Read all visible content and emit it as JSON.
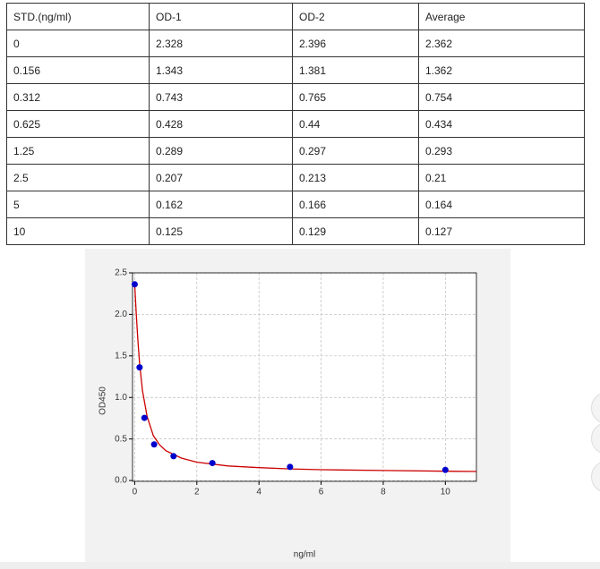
{
  "table": {
    "header": [
      "STD.(ng/ml)",
      "OD-1",
      "OD-2",
      "Average"
    ],
    "rows": [
      [
        "0",
        "2.328",
        "2.396",
        "2.362"
      ],
      [
        "0.156",
        "1.343",
        "1.381",
        "1.362"
      ],
      [
        "0.312",
        "0.743",
        "0.765",
        "0.754"
      ],
      [
        "0.625",
        "0.428",
        "0.44",
        "0.434"
      ],
      [
        "1.25",
        "0.289",
        "0.297",
        "0.293"
      ],
      [
        "2.5",
        "0.207",
        "0.213",
        "0.21"
      ],
      [
        "5",
        "0.162",
        "0.166",
        "0.164"
      ],
      [
        "10",
        "0.125",
        "0.129",
        "0.127"
      ]
    ]
  },
  "chart_data": {
    "type": "scatter",
    "xlabel": "ng/ml",
    "ylabel": "OD450",
    "xlim": [
      -0.07,
      11.0
    ],
    "ylim": [
      -0.01,
      2.5
    ],
    "xticks": [
      0,
      2,
      4,
      6,
      8,
      10
    ],
    "yticks": [
      {
        "value": 0,
        "label": "0.0"
      },
      0.5,
      {
        "value": 1,
        "label": "1.0"
      },
      1.5,
      {
        "value": 2,
        "label": "2.0"
      },
      2.5
    ],
    "grid": true,
    "series": [
      {
        "style": "line",
        "color": "#cc0000",
        "x": [
          0,
          0.05,
          0.1,
          0.156,
          0.25,
          0.4,
          0.6,
          0.8,
          1,
          1.5,
          2,
          3,
          4,
          5,
          6,
          8,
          10,
          11
        ],
        "values": [
          2.36,
          2.0,
          1.7,
          1.42,
          1.08,
          0.77,
          0.54,
          0.43,
          0.36,
          0.27,
          0.22,
          0.175,
          0.155,
          0.14,
          0.13,
          0.12,
          0.112,
          0.108
        ]
      },
      {
        "style": "marker",
        "color": "#0000cc",
        "x": [
          0,
          0.156,
          0.312,
          0.625,
          1.25,
          2.5,
          5,
          10
        ],
        "values": [
          2.362,
          1.362,
          0.754,
          0.434,
          0.293,
          0.21,
          0.164,
          0.127
        ]
      }
    ]
  }
}
